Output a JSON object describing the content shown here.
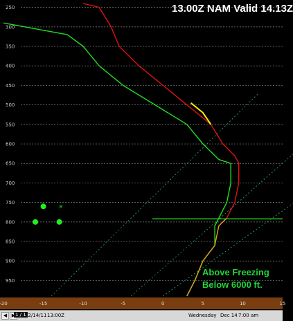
{
  "title": "13.00Z NAM Valid 14.13Z",
  "annotation": {
    "line1": "Above Freezing",
    "line2": "Below 6000 ft."
  },
  "marker_label": "B",
  "status_bar": {
    "prev_icon": "left-arrow-icon",
    "next_icon": "right-arrow-icon",
    "date": "12/14/11",
    "time": "13:00Z",
    "page": "1 / 1",
    "valid_day": "Wednesday",
    "valid_date": "Dec 14",
    "valid_time": "7:00 am"
  },
  "colors": {
    "temperature": "#e01010",
    "dewpoint": "#22dd22",
    "highlight_segment": "#ffee00",
    "lower_profile": "#d4a017",
    "isotherm_guides": "#23b36a",
    "ground": "#7a3d10",
    "freezing_line": "#22cc22"
  },
  "chart_data": {
    "type": "line",
    "xlim": [
      -20,
      15
    ],
    "x_ticks": [
      -20,
      -15,
      -10,
      -5,
      0,
      5,
      10,
      15
    ],
    "y_ticks_hpa": [
      250,
      300,
      350,
      400,
      450,
      500,
      550,
      600,
      650,
      700,
      750,
      800,
      850,
      900,
      950
    ],
    "ylim_hpa": [
      240,
      990
    ],
    "series": [
      {
        "key": "temperature",
        "points": [
          [
            -10,
            240
          ],
          [
            -8,
            250
          ],
          [
            -6.5,
            300
          ],
          [
            -5.5,
            350
          ],
          [
            -3,
            400
          ],
          [
            0,
            450
          ],
          [
            3,
            500
          ],
          [
            6,
            550
          ],
          [
            7.5,
            600
          ],
          [
            9,
            630
          ],
          [
            9.5,
            650
          ],
          [
            9.5,
            700
          ],
          [
            9,
            750
          ],
          [
            8,
            790
          ],
          [
            7,
            810
          ],
          [
            6.5,
            860
          ],
          [
            5,
            900
          ],
          [
            4,
            950
          ],
          [
            3,
            990
          ]
        ]
      },
      {
        "key": "dewpoint",
        "points": [
          [
            -20,
            290
          ],
          [
            -12,
            320
          ],
          [
            -10,
            350
          ],
          [
            -8,
            400
          ],
          [
            -5,
            450
          ],
          [
            -1,
            500
          ],
          [
            3,
            550
          ],
          [
            5,
            600
          ],
          [
            7,
            640
          ],
          [
            8.5,
            650
          ],
          [
            8.5,
            700
          ],
          [
            8,
            750
          ],
          [
            7,
            790
          ],
          [
            6.5,
            810
          ],
          [
            6.5,
            860
          ],
          [
            5,
            900
          ],
          [
            4,
            950
          ],
          [
            3,
            990
          ]
        ]
      }
    ],
    "highlight_segment": {
      "points": [
        [
          3.5,
          495
        ],
        [
          5,
          520
        ],
        [
          6,
          550
        ]
      ]
    },
    "points": [
      [
        -15,
        760
      ],
      [
        -16,
        800
      ],
      [
        -13,
        800
      ]
    ]
  }
}
